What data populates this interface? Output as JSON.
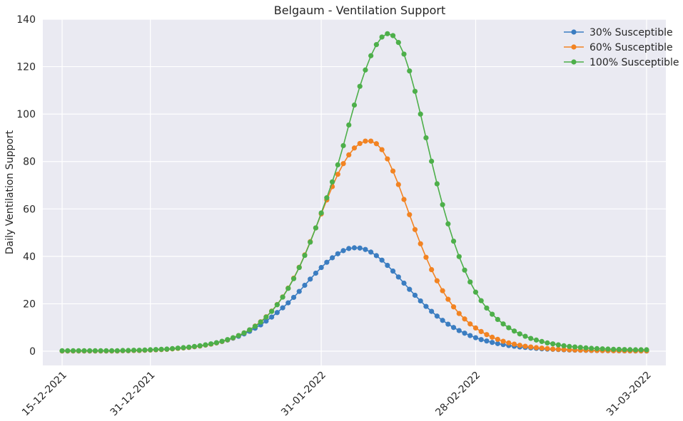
{
  "chart_data": {
    "type": "line",
    "title": "Belgaum - Ventilation Support",
    "xlabel": "",
    "ylabel": "Daily Ventilation Support",
    "x_start": "15-12-2021",
    "x_end": "31-03-2022",
    "xticks": [
      "15-12-2021",
      "31-12-2021",
      "31-01-2022",
      "28-02-2022",
      "31-03-2022"
    ],
    "ylim": [
      -6,
      140
    ],
    "yticks": [
      0,
      20,
      40,
      60,
      80,
      100,
      120,
      140
    ],
    "grid": true,
    "legend_position": "top-right",
    "marker": "circle",
    "series": [
      {
        "name": "30% Susceptible",
        "color": "#3b7dc1",
        "values": [
          0.1,
          0.1,
          0.1,
          0.1,
          0.1,
          0.1,
          0.1,
          0.1,
          0.1,
          0.1,
          0.1,
          0.2,
          0.2,
          0.3,
          0.3,
          0.4,
          0.5,
          0.6,
          0.7,
          0.8,
          1.0,
          1.2,
          1.4,
          1.6,
          1.9,
          2.2,
          2.6,
          3.0,
          3.5,
          4.1,
          4.7,
          5.5,
          6.3,
          7.3,
          8.4,
          9.7,
          11.1,
          12.7,
          14.4,
          16.3,
          18.3,
          20.4,
          22.7,
          25.2,
          27.8,
          30.4,
          32.9,
          35.3,
          37.5,
          39.4,
          41.1,
          42.4,
          43.3,
          43.6,
          43.5,
          42.9,
          41.8,
          40.3,
          38.4,
          36.2,
          33.8,
          31.3,
          28.7,
          26.1,
          23.6,
          21.2,
          18.9,
          16.8,
          14.8,
          13.0,
          11.4,
          10.0,
          8.7,
          7.6,
          6.6,
          5.7,
          4.9,
          4.3,
          3.7,
          3.2,
          2.8,
          2.4,
          2.1,
          1.8,
          1.6,
          1.4,
          1.2,
          1.0,
          0.9,
          0.8,
          0.7,
          0.6,
          0.5,
          0.45,
          0.4,
          0.35,
          0.3,
          0.27,
          0.24,
          0.21,
          0.19,
          0.17,
          0.15,
          0.14,
          0.13,
          0.12,
          0.11
        ]
      },
      {
        "name": "60% Susceptible",
        "color": "#f28322",
        "values": [
          0.1,
          0.1,
          0.1,
          0.1,
          0.1,
          0.1,
          0.1,
          0.1,
          0.1,
          0.1,
          0.1,
          0.2,
          0.2,
          0.3,
          0.3,
          0.4,
          0.5,
          0.6,
          0.7,
          0.8,
          1.0,
          1.2,
          1.4,
          1.6,
          1.9,
          2.2,
          2.6,
          3.0,
          3.5,
          4.1,
          4.8,
          5.6,
          6.6,
          7.7,
          9.0,
          10.6,
          12.4,
          14.5,
          16.9,
          19.7,
          22.9,
          26.6,
          30.8,
          35.4,
          40.6,
          46.2,
          52.0,
          57.9,
          63.8,
          69.4,
          74.6,
          79.1,
          82.8,
          85.7,
          87.6,
          88.6,
          88.6,
          87.5,
          85.0,
          81.1,
          76.0,
          70.3,
          64.0,
          57.6,
          51.3,
          45.3,
          39.6,
          34.4,
          29.7,
          25.5,
          21.9,
          18.7,
          15.9,
          13.6,
          11.5,
          9.8,
          8.3,
          7.0,
          5.9,
          5.0,
          4.2,
          3.5,
          3.0,
          2.5,
          2.1,
          1.8,
          1.5,
          1.3,
          1.1,
          0.9,
          0.8,
          0.7,
          0.6,
          0.5,
          0.45,
          0.4,
          0.35,
          0.3,
          0.27,
          0.24,
          0.21,
          0.19,
          0.17,
          0.15,
          0.14,
          0.13,
          0.12
        ]
      },
      {
        "name": "100% Susceptible",
        "color": "#4daf4a",
        "values": [
          0.2,
          0.2,
          0.2,
          0.2,
          0.2,
          0.2,
          0.2,
          0.2,
          0.2,
          0.2,
          0.2,
          0.3,
          0.3,
          0.4,
          0.4,
          0.5,
          0.6,
          0.7,
          0.8,
          0.9,
          1.1,
          1.3,
          1.5,
          1.7,
          2.0,
          2.3,
          2.7,
          3.1,
          3.6,
          4.2,
          4.9,
          5.7,
          6.6,
          7.7,
          9.0,
          10.5,
          12.3,
          14.4,
          16.8,
          19.6,
          22.8,
          26.5,
          30.6,
          35.3,
          40.4,
          46.0,
          52.0,
          58.3,
          64.7,
          71.4,
          78.6,
          86.7,
          95.4,
          103.8,
          111.7,
          118.6,
          124.6,
          129.3,
          132.5,
          133.9,
          133.1,
          130.2,
          125.3,
          118.2,
          109.6,
          100.0,
          90.0,
          80.1,
          70.6,
          61.8,
          53.7,
          46.4,
          39.9,
          34.2,
          29.2,
          24.9,
          21.3,
          18.2,
          15.6,
          13.4,
          11.5,
          9.9,
          8.5,
          7.3,
          6.3,
          5.4,
          4.7,
          4.1,
          3.5,
          3.1,
          2.7,
          2.3,
          2.0,
          1.8,
          1.6,
          1.4,
          1.2,
          1.1,
          1.0,
          0.9,
          0.8,
          0.75,
          0.7,
          0.65,
          0.6,
          0.6,
          0.6
        ]
      }
    ]
  }
}
